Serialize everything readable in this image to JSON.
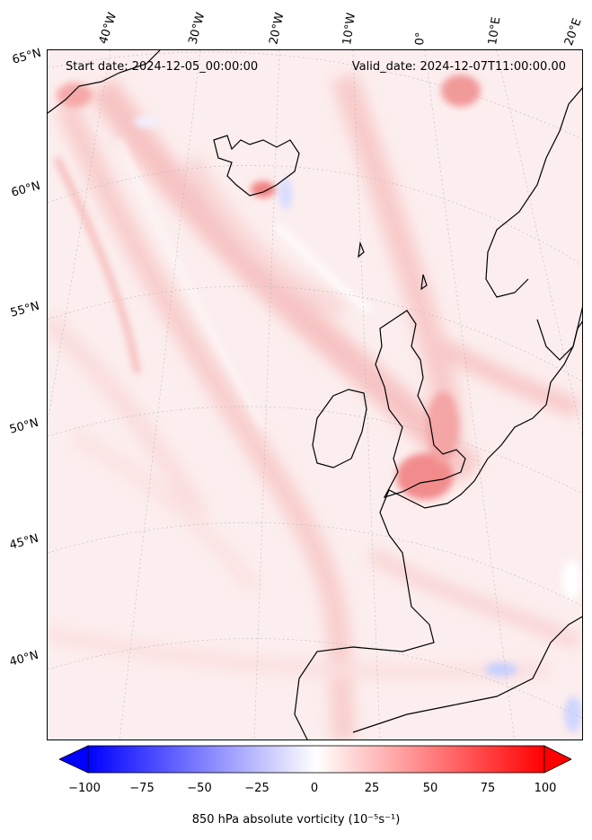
{
  "map": {
    "header": {
      "start_date": "Start date: 2024-12-05_00:00:00",
      "valid_date": "Valid_date: 2024-12-07T11:00:00.00"
    },
    "lon_labels": [
      "40°W",
      "30°W",
      "20°W",
      "10°W",
      "0°",
      "10°E",
      "20°E"
    ],
    "lat_labels": [
      "65°N",
      "60°N",
      "55°N",
      "50°N",
      "45°N",
      "40°N"
    ],
    "region": "North Atlantic and Western Europe",
    "field_colors": {
      "positive_strong": "#ff0000",
      "positive_weak": "#ffd6d6",
      "near_zero": "#ffffff",
      "negative": "#0000ff",
      "coastline": "#000000"
    }
  },
  "colorbar": {
    "min": -100,
    "max": 100,
    "levels": 40,
    "ticks": [
      "−100",
      "−75",
      "−50",
      "−25",
      "0",
      "25",
      "50",
      "75",
      "100"
    ],
    "label": "850 hPa absolute vorticity (10⁻⁵s⁻¹)",
    "colormap": [
      "#0000ff",
      "#ffffff",
      "#ff0000"
    ],
    "extend": "both"
  }
}
